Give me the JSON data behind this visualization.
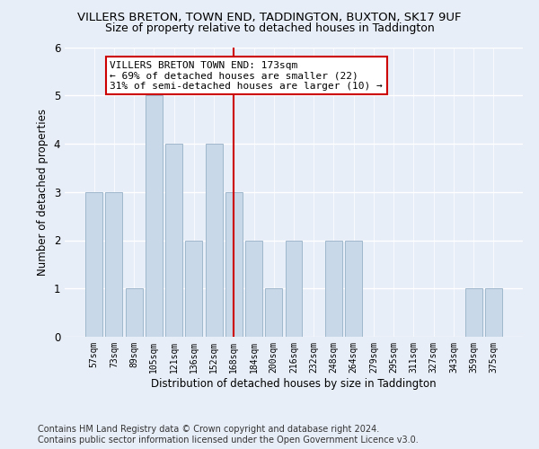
{
  "title": "VILLERS BRETON, TOWN END, TADDINGTON, BUXTON, SK17 9UF",
  "subtitle": "Size of property relative to detached houses in Taddington",
  "xlabel": "Distribution of detached houses by size in Taddington",
  "ylabel": "Number of detached properties",
  "categories": [
    "57sqm",
    "73sqm",
    "89sqm",
    "105sqm",
    "121sqm",
    "136sqm",
    "152sqm",
    "168sqm",
    "184sqm",
    "200sqm",
    "216sqm",
    "232sqm",
    "248sqm",
    "264sqm",
    "279sqm",
    "295sqm",
    "311sqm",
    "327sqm",
    "343sqm",
    "359sqm",
    "375sqm"
  ],
  "values": [
    3,
    3,
    1,
    5,
    4,
    2,
    4,
    3,
    2,
    1,
    2,
    0,
    2,
    2,
    0,
    0,
    0,
    0,
    0,
    1,
    1
  ],
  "bar_color": "#c8d8e8",
  "bar_edge_color": "#a0b8cc",
  "vline_x_index": 7,
  "vline_color": "#cc0000",
  "annotation_text": "VILLERS BRETON TOWN END: 173sqm\n← 69% of detached houses are smaller (22)\n31% of semi-detached houses are larger (10) →",
  "annotation_box_color": "white",
  "annotation_box_edge_color": "#cc0000",
  "ylim": [
    0,
    6
  ],
  "yticks": [
    0,
    1,
    2,
    3,
    4,
    5,
    6
  ],
  "footer_line1": "Contains HM Land Registry data © Crown copyright and database right 2024.",
  "footer_line2": "Contains public sector information licensed under the Open Government Licence v3.0.",
  "background_color": "#e8eef8",
  "plot_background_color": "#e8eef8",
  "grid_color": "white",
  "title_fontsize": 9.5,
  "subtitle_fontsize": 9,
  "annotation_fontsize": 8,
  "footer_fontsize": 7,
  "ylabel_fontsize": 8.5,
  "xlabel_fontsize": 8.5
}
